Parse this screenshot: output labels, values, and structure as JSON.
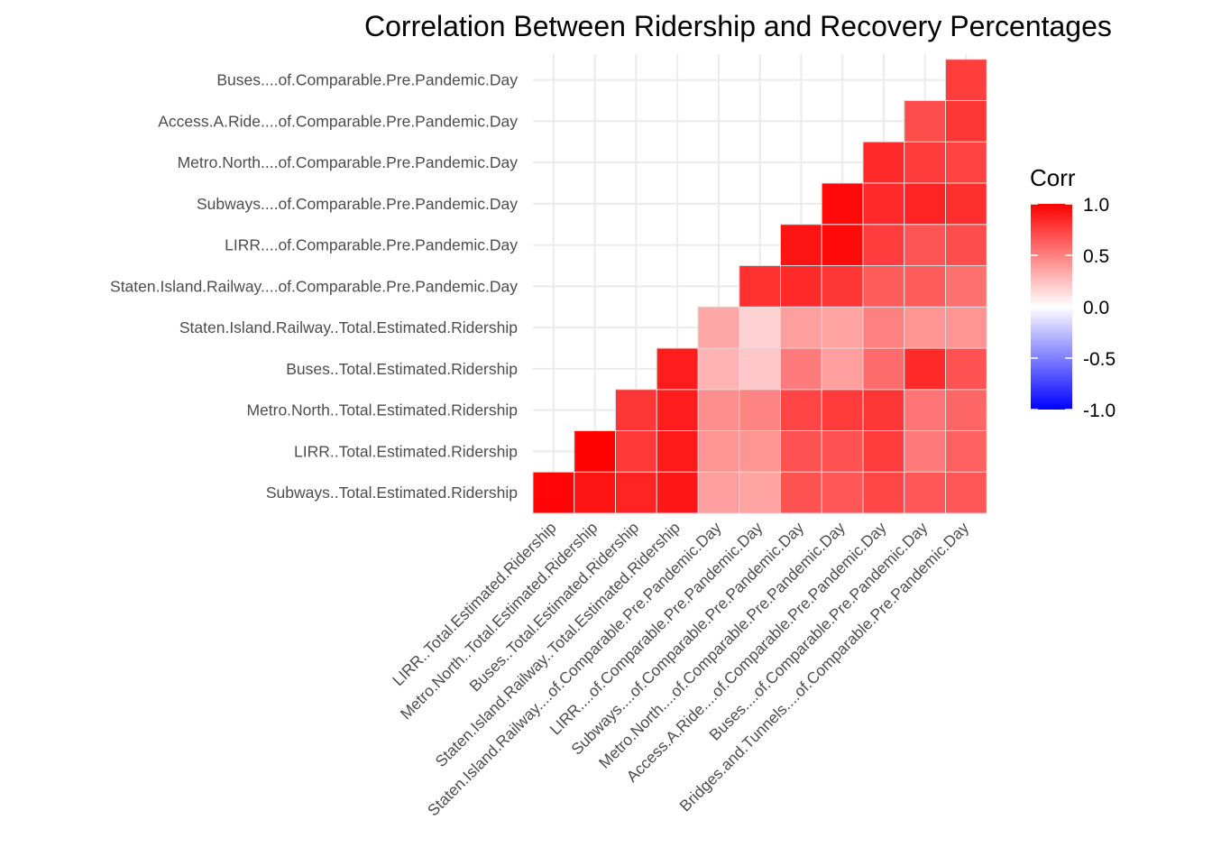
{
  "chart_data": {
    "type": "heatmap",
    "title": "Correlation Between Ridership and Recovery Percentages",
    "xlabel": "",
    "ylabel": "",
    "x_categories": [
      "LIRR..Total.Estimated.Ridership",
      "Metro.North..Total.Estimated.Ridership",
      "Buses..Total.Estimated.Ridership",
      "Staten.Island.Railway..Total.Estimated.Ridership",
      "Staten.Island.Railway....of.Comparable.Pre.Pandemic.Day",
      "LIRR....of.Comparable.Pre.Pandemic.Day",
      "Subways....of.Comparable.Pre.Pandemic.Day",
      "Metro.North....of.Comparable.Pre.Pandemic.Day",
      "Access.A.Ride....of.Comparable.Pre.Pandemic.Day",
      "Buses....of.Comparable.Pre.Pandemic.Day",
      "Bridges.and.Tunnels....of.Comparable.Pre.Pandemic.Day"
    ],
    "y_categories": [
      "Subways..Total.Estimated.Ridership",
      "LIRR..Total.Estimated.Ridership",
      "Metro.North..Total.Estimated.Ridership",
      "Buses..Total.Estimated.Ridership",
      "Staten.Island.Railway..Total.Estimated.Ridership",
      "Staten.Island.Railway....of.Comparable.Pre.Pandemic.Day",
      "LIRR....of.Comparable.Pre.Pandemic.Day",
      "Subways....of.Comparable.Pre.Pandemic.Day",
      "Metro.North....of.Comparable.Pre.Pandemic.Day",
      "Access.A.Ride....of.Comparable.Pre.Pandemic.Day",
      "Buses....of.Comparable.Pre.Pandemic.Day"
    ],
    "values": [
      [
        0.98,
        0.92,
        0.86,
        0.91,
        0.38,
        0.36,
        0.68,
        0.66,
        0.72,
        0.66,
        0.66
      ],
      [
        null,
        0.99,
        0.78,
        0.9,
        0.42,
        0.42,
        0.68,
        0.68,
        0.76,
        0.52,
        0.62
      ],
      [
        null,
        null,
        0.79,
        0.89,
        0.44,
        0.48,
        0.73,
        0.77,
        0.79,
        0.54,
        0.6
      ],
      [
        null,
        null,
        null,
        0.89,
        0.3,
        0.22,
        0.52,
        0.38,
        0.58,
        0.83,
        0.68
      ],
      [
        null,
        null,
        null,
        null,
        0.35,
        0.18,
        0.38,
        0.36,
        0.5,
        0.42,
        0.42
      ],
      [
        null,
        null,
        null,
        null,
        null,
        0.81,
        0.83,
        0.79,
        0.64,
        0.64,
        0.56
      ],
      [
        null,
        null,
        null,
        null,
        null,
        null,
        0.92,
        0.96,
        0.76,
        0.67,
        0.7
      ],
      [
        null,
        null,
        null,
        null,
        null,
        null,
        null,
        0.97,
        0.84,
        0.86,
        0.82
      ],
      [
        null,
        null,
        null,
        null,
        null,
        null,
        null,
        null,
        0.84,
        0.77,
        0.74
      ],
      [
        null,
        null,
        null,
        null,
        null,
        null,
        null,
        null,
        null,
        0.7,
        0.79
      ],
      [
        null,
        null,
        null,
        null,
        null,
        null,
        null,
        null,
        null,
        null,
        0.76
      ]
    ],
    "scale": {
      "low": "#0000ff",
      "mid": "#ffffff",
      "high": "#ff0000",
      "limits": [
        -1,
        1
      ]
    },
    "legend": {
      "title": "Corr",
      "ticks": [
        "1.0",
        "0.5",
        "0.0",
        "-0.5",
        "-1.0"
      ],
      "placement": "right"
    },
    "grid": true
  }
}
